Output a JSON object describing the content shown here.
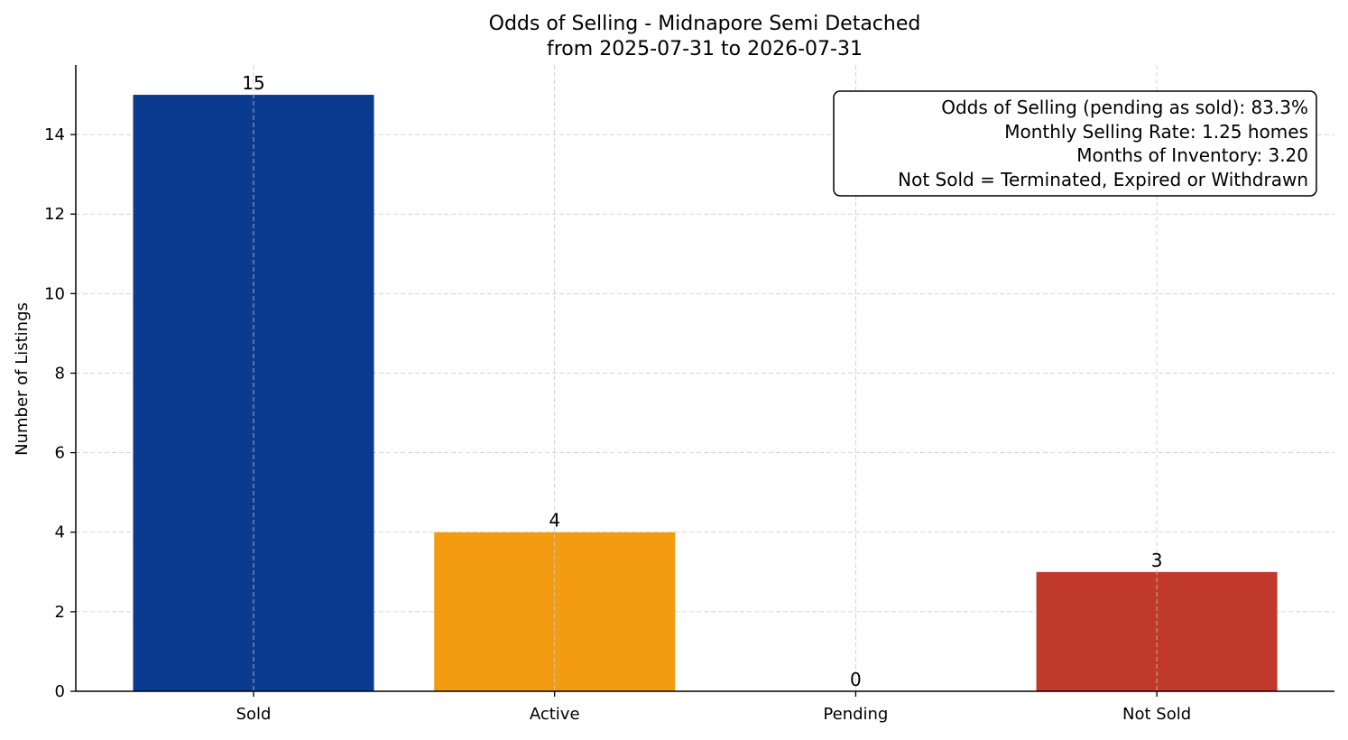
{
  "chart_data": {
    "type": "bar",
    "title_lines": [
      "Odds of Selling - Midnapore Semi Detached",
      "from 2025-07-31 to 2026-07-31"
    ],
    "xlabel": "",
    "ylabel": "Number of Listings",
    "categories": [
      "Sold",
      "Active",
      "Pending",
      "Not Sold"
    ],
    "values": [
      15,
      4,
      0,
      3
    ],
    "value_labels": [
      "15",
      "4",
      "0",
      "3"
    ],
    "colors": [
      "#0b3b8f",
      "#f39c12",
      "#f39c12",
      "#c0392b"
    ],
    "ylim": [
      0,
      15.75
    ],
    "yticks": [
      0,
      2,
      4,
      6,
      8,
      10,
      12,
      14
    ],
    "ytick_labels": [
      "0",
      "2",
      "4",
      "6",
      "8",
      "10",
      "12",
      "14"
    ],
    "grid": true,
    "legend": "none",
    "annotation": {
      "placement": "top-right",
      "lines": [
        "Odds of Selling (pending as sold): 83.3%",
        "Monthly Selling Rate: 1.25 homes",
        "Months of Inventory: 3.20",
        "Not Sold = Terminated, Expired or Withdrawn"
      ]
    }
  }
}
